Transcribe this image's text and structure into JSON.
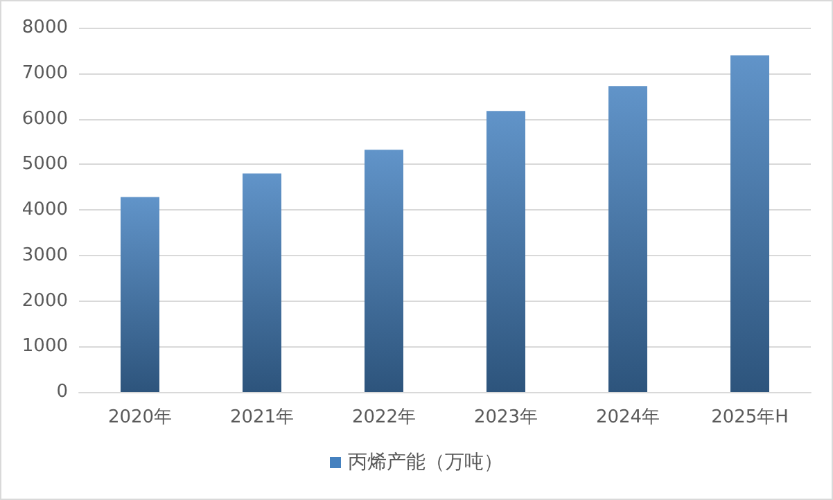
{
  "chart_data": {
    "type": "bar",
    "categories": [
      "2020年",
      "2021年",
      "2022年",
      "2023年",
      "2024年",
      "2025年H"
    ],
    "series": [
      {
        "name": "丙烯产能（万吨）",
        "color": "#4581bf",
        "values": [
          4280,
          4800,
          5320,
          6170,
          6720,
          7390
        ]
      }
    ],
    "ylim": [
      0,
      8000
    ],
    "yticks": [
      0,
      1000,
      2000,
      3000,
      4000,
      5000,
      6000,
      7000,
      8000
    ],
    "grid": "y",
    "legend": "bottom"
  }
}
